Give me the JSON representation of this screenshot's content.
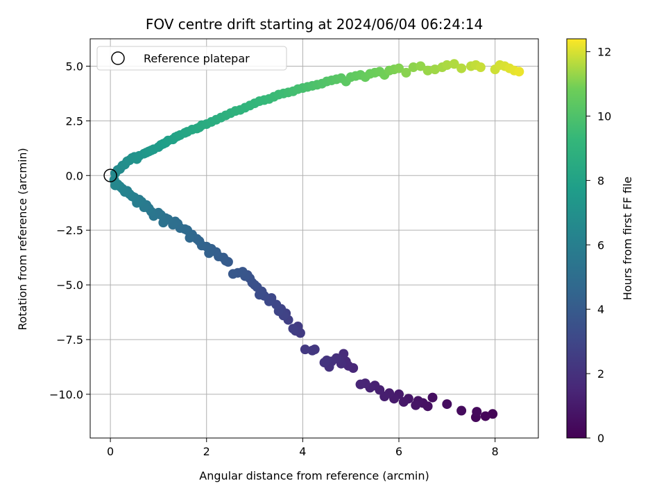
{
  "chart_data": {
    "type": "scatter",
    "title": "FOV centre drift starting at 2024/06/04 06:24:14",
    "xlabel": "Angular distance from reference (arcmin)",
    "ylabel": "Rotation from reference (arcmin)",
    "xlim": [
      -0.42,
      8.9
    ],
    "ylim": [
      -12.0,
      6.25
    ],
    "xticks": [
      0,
      2,
      4,
      6,
      8
    ],
    "xtick_labels": [
      "0",
      "2",
      "4",
      "6",
      "8"
    ],
    "yticks": [
      -10.0,
      -7.5,
      -5.0,
      -2.5,
      0.0,
      2.5,
      5.0
    ],
    "ytick_labels": [
      "−10.0",
      "−7.5",
      "−5.0",
      "−2.5",
      "0.0",
      "2.5",
      "5.0"
    ],
    "grid": true,
    "legend": {
      "location": "upper left",
      "entries": [
        "Reference platepar"
      ]
    },
    "reference_point": {
      "x": 0,
      "y": 0,
      "label": "Reference platepar"
    },
    "colorbar": {
      "label": "Hours from first FF file",
      "colormap": "viridis",
      "min": 0,
      "max": 12.4,
      "ticks": [
        0,
        2,
        4,
        6,
        8,
        10,
        12
      ],
      "tick_labels": [
        "0",
        "2",
        "4",
        "6",
        "8",
        "10",
        "12"
      ]
    },
    "series": [
      {
        "color_by": "hours",
        "x": [
          7.95,
          7.8,
          7.6,
          7.62,
          7.3,
          7.0,
          6.7,
          6.6,
          6.5,
          6.4,
          6.35,
          6.2,
          6.1,
          6.0,
          5.9,
          5.8,
          5.7,
          5.6,
          5.5,
          5.4,
          5.3,
          5.2,
          5.05,
          4.95,
          4.9,
          4.85,
          4.8,
          4.75,
          4.7,
          4.6,
          4.55,
          4.5,
          4.45,
          4.25,
          4.2,
          4.05,
          3.95,
          3.9,
          3.85,
          3.8,
          3.7,
          3.65,
          3.6,
          3.55,
          3.5,
          3.45,
          3.35,
          3.3,
          3.2,
          3.15,
          3.1,
          3.05,
          3.0,
          2.95,
          2.9,
          2.85,
          2.8,
          2.75,
          2.65,
          2.55,
          2.45,
          2.4,
          2.35,
          2.25,
          2.2,
          2.1,
          2.05,
          2.0,
          1.9,
          1.85,
          1.8,
          1.7,
          1.65,
          1.6,
          1.55,
          1.45,
          1.4,
          1.35,
          1.3,
          1.2,
          1.15,
          1.1,
          1.05,
          1.0,
          0.9,
          0.85,
          0.8,
          0.75,
          0.7,
          0.65,
          0.6,
          0.55,
          0.5,
          0.45,
          0.4,
          0.35,
          0.3,
          0.25,
          0.2,
          0.15,
          0.1,
          0.08,
          0.1,
          0.15,
          0.2,
          0.25,
          0.3,
          0.35,
          0.4,
          0.45,
          0.5,
          0.55,
          0.6,
          0.7,
          0.75,
          0.8,
          0.85,
          0.9,
          1.0,
          1.05,
          1.1,
          1.15,
          1.2,
          1.3,
          1.35,
          1.4,
          1.45,
          1.55,
          1.6,
          1.7,
          1.8,
          1.85,
          1.9,
          2.0,
          2.1,
          2.2,
          2.3,
          2.4,
          2.5,
          2.6,
          2.7,
          2.8,
          2.9,
          3.0,
          3.1,
          3.2,
          3.3,
          3.4,
          3.5,
          3.6,
          3.7,
          3.8,
          3.9,
          4.0,
          4.1,
          4.2,
          4.3,
          4.4,
          4.5,
          4.6,
          4.7,
          4.8,
          4.9,
          5.0,
          5.1,
          5.2,
          5.3,
          5.4,
          5.5,
          5.6,
          5.7,
          5.8,
          5.9,
          6.0,
          6.15,
          6.3,
          6.45,
          6.6,
          6.75,
          6.9,
          7.0,
          7.15,
          7.3,
          7.5,
          7.6,
          7.7,
          8.0,
          8.1,
          8.2,
          8.3,
          8.4,
          8.5
        ],
        "y": [
          -10.9,
          -11.0,
          -11.05,
          -10.8,
          -10.75,
          -10.45,
          -10.15,
          -10.55,
          -10.4,
          -10.3,
          -10.5,
          -10.2,
          -10.35,
          -10.0,
          -10.2,
          -9.95,
          -10.1,
          -9.8,
          -9.6,
          -9.7,
          -9.5,
          -9.55,
          -8.8,
          -8.7,
          -8.5,
          -8.15,
          -8.6,
          -8.4,
          -8.35,
          -8.5,
          -8.75,
          -8.45,
          -8.55,
          -7.95,
          -8.0,
          -7.95,
          -7.2,
          -6.9,
          -7.1,
          -7.0,
          -6.6,
          -6.3,
          -6.4,
          -6.1,
          -6.2,
          -5.9,
          -5.6,
          -5.75,
          -5.5,
          -5.3,
          -5.45,
          -5.1,
          -5.0,
          -4.9,
          -4.7,
          -4.55,
          -4.6,
          -4.4,
          -4.45,
          -4.5,
          -3.95,
          -3.9,
          -3.75,
          -3.7,
          -3.5,
          -3.35,
          -3.55,
          -3.25,
          -3.2,
          -3.0,
          -2.9,
          -2.7,
          -2.85,
          -2.5,
          -2.45,
          -2.4,
          -2.2,
          -2.1,
          -2.25,
          -2.0,
          -1.95,
          -2.15,
          -1.8,
          -1.7,
          -1.85,
          -1.65,
          -1.5,
          -1.35,
          -1.45,
          -1.2,
          -1.1,
          -1.25,
          -1.0,
          -0.95,
          -0.85,
          -0.7,
          -0.75,
          -0.6,
          -0.5,
          -0.4,
          -0.45,
          -0.2,
          0.1,
          0.25,
          0.3,
          0.45,
          0.5,
          0.65,
          0.7,
          0.8,
          0.85,
          0.75,
          0.9,
          1.0,
          1.05,
          1.1,
          1.15,
          1.2,
          1.3,
          1.4,
          1.45,
          1.5,
          1.6,
          1.65,
          1.75,
          1.8,
          1.85,
          1.95,
          2.0,
          2.1,
          2.15,
          2.2,
          2.3,
          2.35,
          2.45,
          2.55,
          2.65,
          2.75,
          2.85,
          2.95,
          3.0,
          3.1,
          3.2,
          3.3,
          3.4,
          3.45,
          3.5,
          3.6,
          3.7,
          3.75,
          3.8,
          3.85,
          3.95,
          4.0,
          4.05,
          4.1,
          4.15,
          4.2,
          4.3,
          4.35,
          4.4,
          4.45,
          4.3,
          4.5,
          4.55,
          4.6,
          4.5,
          4.65,
          4.7,
          4.75,
          4.6,
          4.8,
          4.85,
          4.9,
          4.7,
          4.95,
          5.0,
          4.8,
          4.85,
          4.95,
          5.05,
          5.1,
          4.9,
          5.0,
          5.05,
          4.95,
          4.85,
          5.05,
          5.0,
          4.9,
          4.8,
          4.75
        ]
      }
    ]
  }
}
